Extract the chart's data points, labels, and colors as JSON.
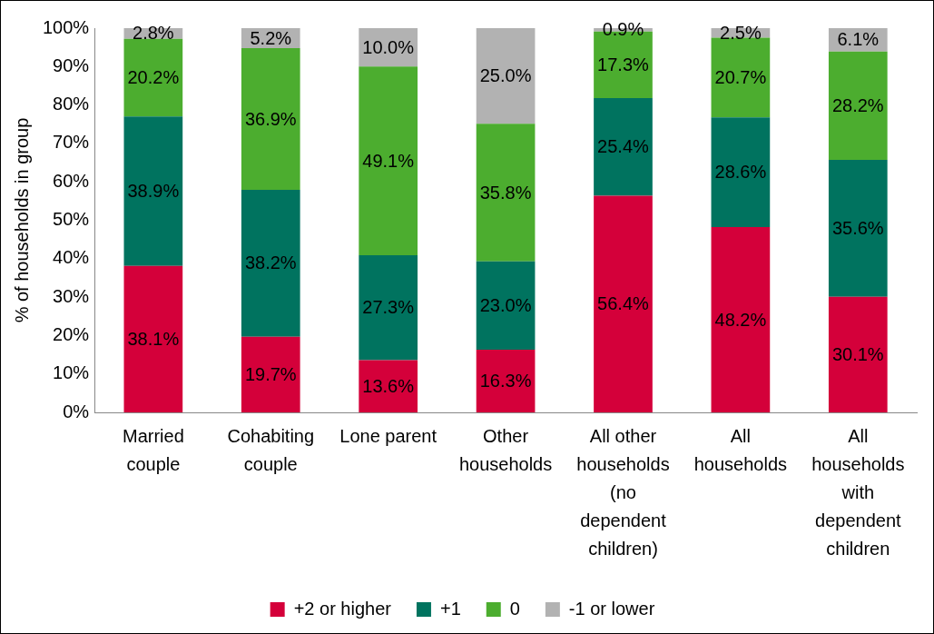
{
  "chart_data": {
    "type": "bar",
    "stacked": true,
    "ylabel": "% of households in group",
    "categories": [
      "Married couple",
      "Cohabiting couple",
      "Lone parent",
      "Other households",
      "All other households (no dependent children)",
      "All households",
      "All households with dependent children"
    ],
    "series": [
      {
        "name": "+2 or higher",
        "color": "#d4003a",
        "values": [
          38.1,
          19.7,
          13.6,
          16.3,
          56.4,
          48.2,
          30.1
        ],
        "value_labels": [
          "38.1%",
          "19.7%",
          "13.6%",
          "16.3%",
          "56.4%",
          "48.2%",
          "30.1%"
        ]
      },
      {
        "name": "+1",
        "color": "#00735f",
        "values": [
          38.9,
          38.2,
          27.3,
          23.0,
          25.4,
          28.6,
          35.6
        ],
        "value_labels": [
          "38.9%",
          "38.2%",
          "27.3%",
          "23.0%",
          "25.4%",
          "28.6%",
          "35.6%"
        ]
      },
      {
        "name": "0",
        "color": "#4cad2f",
        "values": [
          20.2,
          36.9,
          49.1,
          35.8,
          17.3,
          20.7,
          28.2
        ],
        "value_labels": [
          "20.2%",
          "36.9%",
          "49.1%",
          "35.8%",
          "17.3%",
          "20.7%",
          "28.2%"
        ]
      },
      {
        "name": "-1 or lower",
        "color": "#b2b2b2",
        "values": [
          2.8,
          5.2,
          10.0,
          25.0,
          0.9,
          2.5,
          6.1
        ],
        "value_labels": [
          "2.8%",
          "5.2%",
          "10.0%",
          "25.0%",
          "0.9%",
          "2.5%",
          "6.1%"
        ]
      }
    ],
    "ylim": [
      0,
      100
    ],
    "yticks": [
      {
        "value": 0,
        "label": "0%"
      },
      {
        "value": 10,
        "label": "10%"
      },
      {
        "value": 20,
        "label": "20%"
      },
      {
        "value": 30,
        "label": "30%"
      },
      {
        "value": 40,
        "label": "40%"
      },
      {
        "value": 50,
        "label": "50%"
      },
      {
        "value": 60,
        "label": "60%"
      },
      {
        "value": 70,
        "label": "70%"
      },
      {
        "value": 80,
        "label": "80%"
      },
      {
        "value": 90,
        "label": "90%"
      },
      {
        "value": 100,
        "label": "100%"
      }
    ],
    "grid": false,
    "legend": "bottom"
  }
}
